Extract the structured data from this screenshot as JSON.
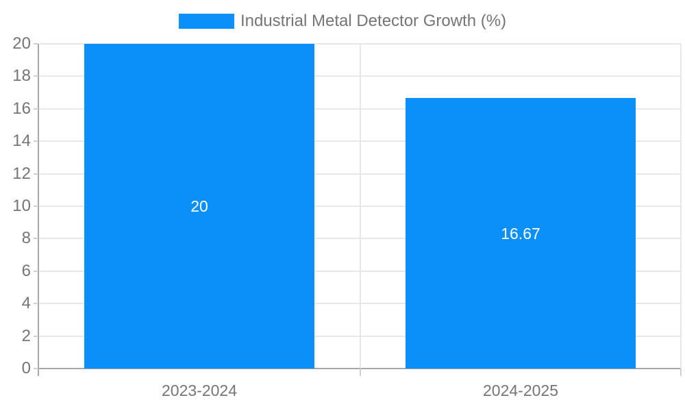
{
  "chart_data": {
    "type": "bar",
    "title": "",
    "legend": {
      "label": "Industrial Metal Detector Growth (%)",
      "position": "top"
    },
    "categories": [
      "2023-2024",
      "2024-2025"
    ],
    "series": [
      {
        "name": "Industrial Metal Detector Growth (%)",
        "values": [
          20,
          16.67
        ]
      }
    ],
    "bar_value_labels": [
      "20",
      "16.67"
    ],
    "xlabel": "",
    "ylabel": "",
    "ylim": [
      0,
      20
    ],
    "ytick_step": 2,
    "grid": true,
    "colors": {
      "bar": "#0a90f8",
      "grid": "#e8e8e8",
      "axis": "#a6a6a6",
      "tick": "#d0d0d0",
      "text": "#757575",
      "bar_label": "#ffffff",
      "background": "#ffffff"
    }
  }
}
